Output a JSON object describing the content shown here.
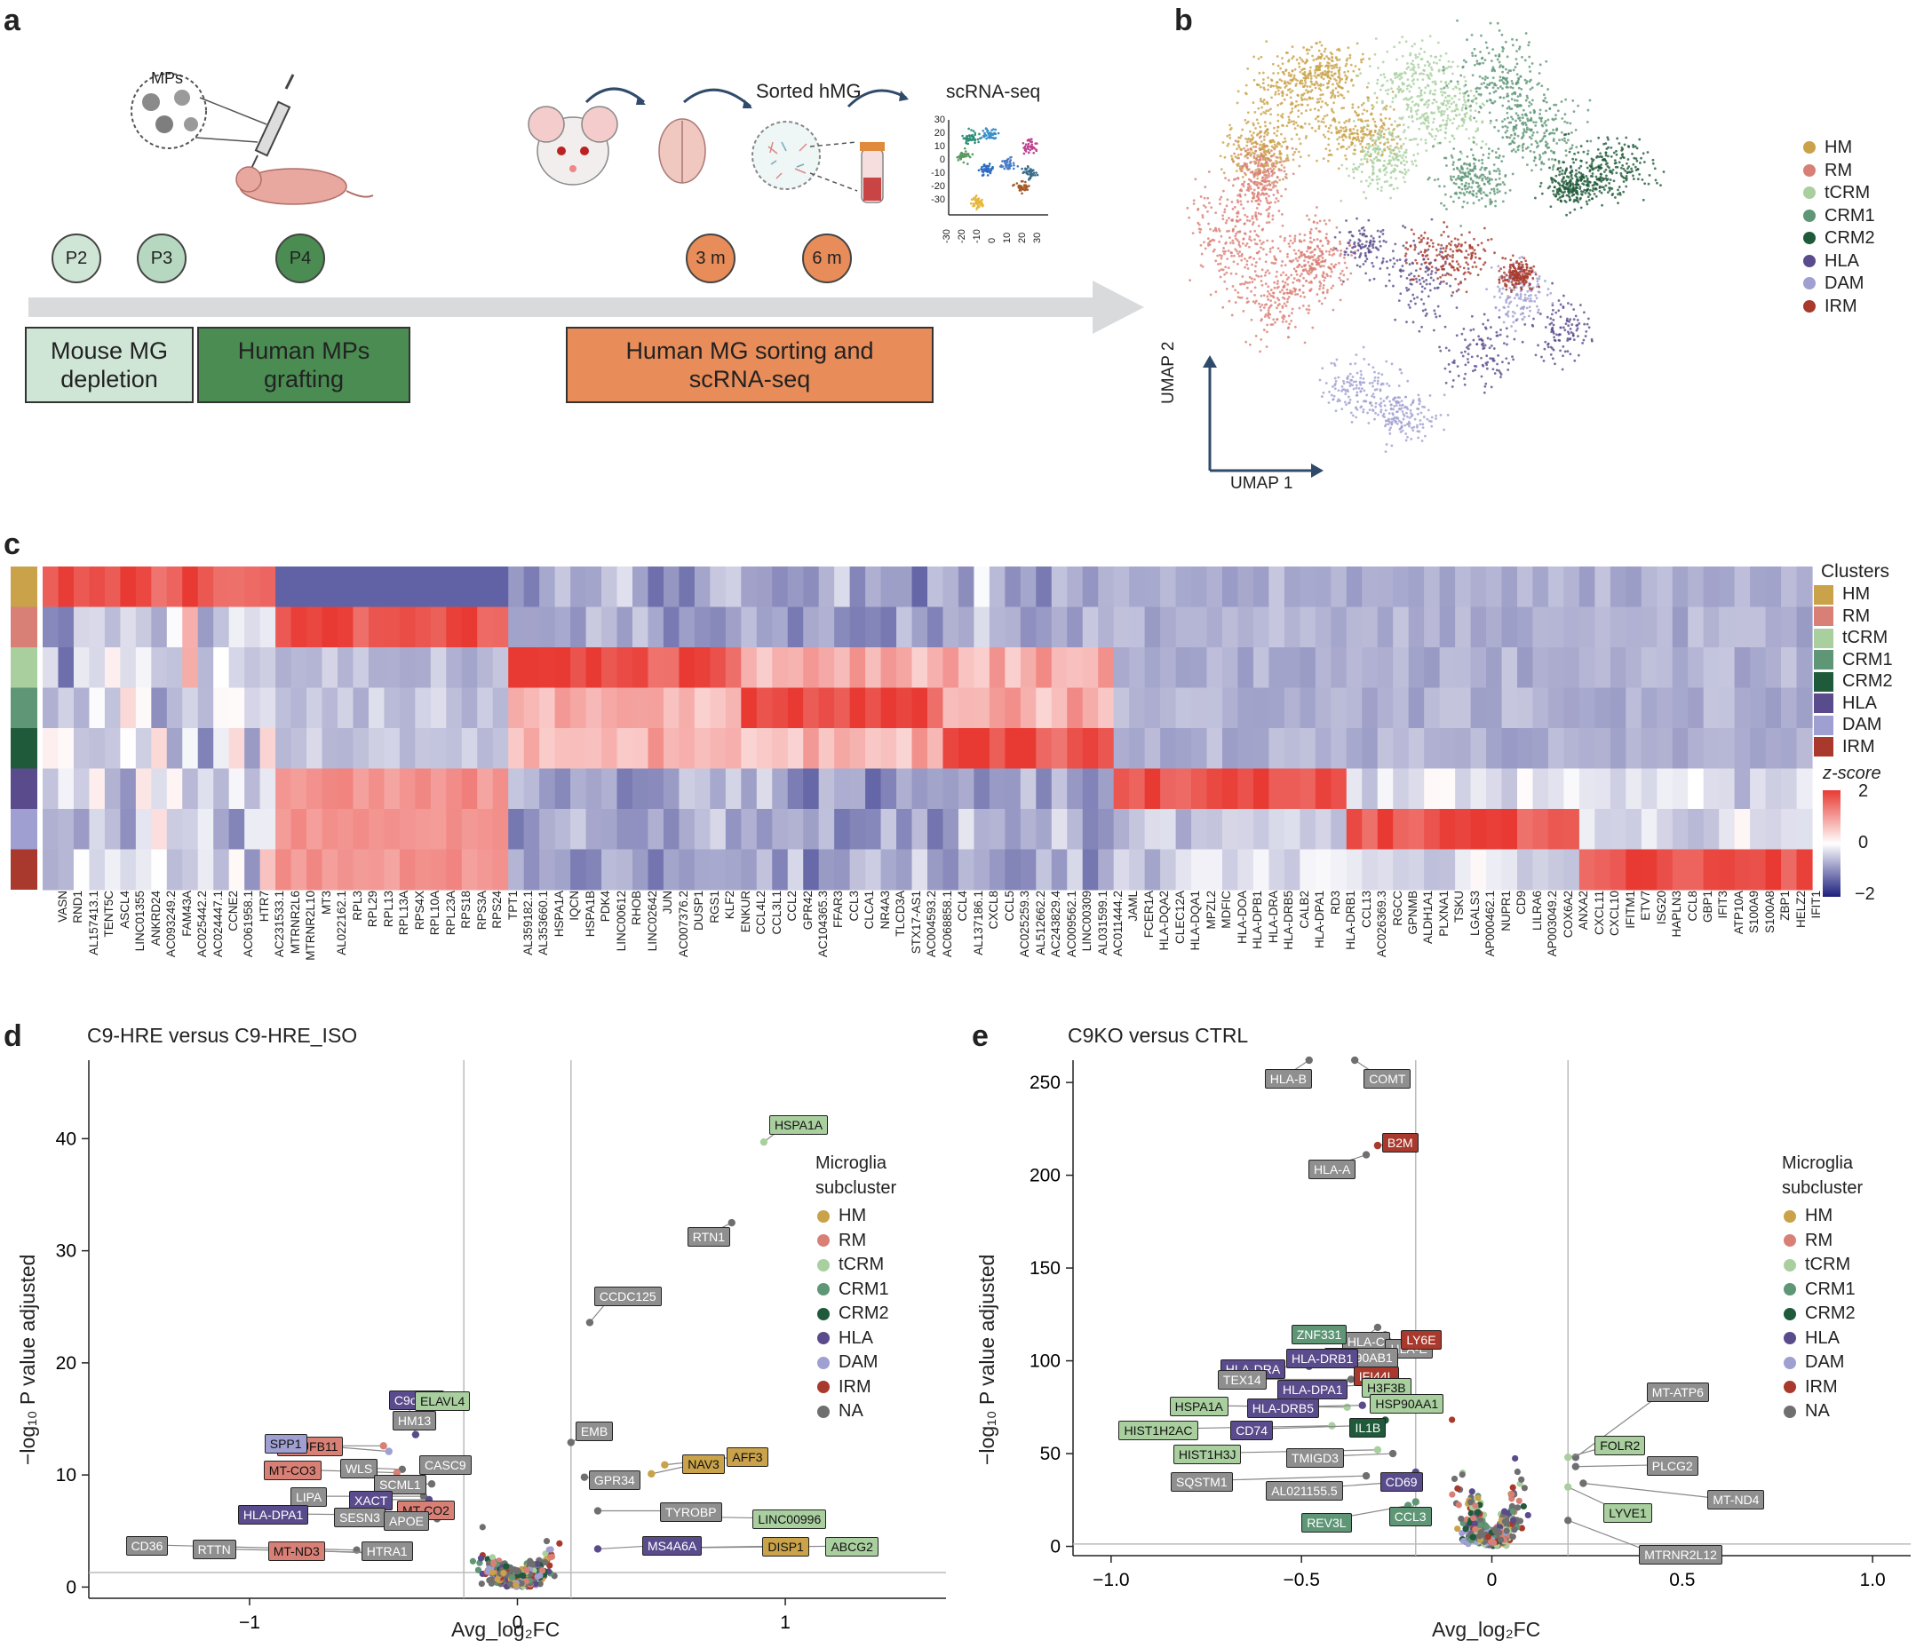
{
  "panels": {
    "a": "a",
    "b": "b",
    "c": "c",
    "d": "d",
    "e": "e"
  },
  "colors": {
    "HM": "#c9a24a",
    "RM": "#d98076",
    "tCRM": "#a9cf9f",
    "CRM1": "#5e9676",
    "CRM2": "#1f5a3a",
    "HLA": "#5a4b8c",
    "DAM": "#9f9fd1",
    "IRM": "#a8392c",
    "NA": "#6f6f6f"
  },
  "panel_a": {
    "mps_label": "MPs",
    "timepoints": [
      "P2",
      "P3",
      "P4"
    ],
    "months": [
      "3 m",
      "6 m"
    ],
    "sorted_label": "Sorted hMG",
    "scrna_label": "scRNA-seq",
    "boxes": {
      "depletion": "Mouse MG\ndepletion",
      "grafting": "Human MPs\ngrafting",
      "sorting": "Human MG sorting and\nscRNA-seq"
    },
    "mini_ticks_y": [
      "30",
      "20",
      "10",
      "0",
      "-10",
      "-20",
      "-30"
    ],
    "mini_ticks_x": [
      "-30",
      "-20",
      "-10",
      "0",
      "10",
      "20",
      "30"
    ]
  },
  "panel_b": {
    "legend": [
      "HM",
      "RM",
      "tCRM",
      "CRM1",
      "CRM2",
      "HLA",
      "DAM",
      "IRM"
    ],
    "axis_x": "UMAP 1",
    "axis_y": "UMAP 2"
  },
  "panel_c": {
    "legend_title": "Clusters",
    "clusters": [
      "HM",
      "RM",
      "tCRM",
      "CRM1",
      "CRM2",
      "HLA",
      "DAM",
      "IRM"
    ],
    "zscore_title": "z-score",
    "zscore_ticks": [
      "2",
      "0",
      "−2"
    ],
    "genes": [
      "VASN",
      "RND1",
      "AL157413.1",
      "TENT5C",
      "ASCL4",
      "LINC01355",
      "ANKRD24",
      "AC093249.2",
      "FAM43A",
      "AC025442.2",
      "AC024447.1",
      "CCNE2",
      "AC061958.1",
      "HTR7",
      "AC231533.1",
      "MTRNR2L6",
      "MTRNR2L10",
      "MT3",
      "AL022162.1",
      "RPL3",
      "RPL29",
      "RPL13",
      "RPL13A",
      "RPS4X",
      "RPL10A",
      "RPL23A",
      "RPS18",
      "RPS3A",
      "RPS24",
      "TPT1",
      "AL359182.1",
      "AL353660.1",
      "HSPA1A",
      "IQCN",
      "HSPA1B",
      "PDK4",
      "LINC00612",
      "RHOB",
      "LINC02642",
      "JUN",
      "AC007376.2",
      "DUSP1",
      "RGS1",
      "KLF2",
      "ENKUR",
      "CCL4L2",
      "CCL3L1",
      "CCL2",
      "GPR42",
      "AC104365.3",
      "FFAR3",
      "CCL3",
      "CLCA1",
      "NR4A3",
      "TLCD3A",
      "STX17-AS1",
      "AC004593.2",
      "AC068858.1",
      "CCL4",
      "AL137186.1",
      "CXCL8",
      "CCL5",
      "AC025259.3",
      "AL512662.2",
      "AC243829.4",
      "AC009562.1",
      "LINC00309",
      "AL031599.1",
      "AC011444.2",
      "JAML",
      "FCER1A",
      "HLA-DQA2",
      "CLEC12A",
      "HLA-DQA1",
      "MPZL2",
      "MDFIC",
      "HLA-DOA",
      "HLA-DPB1",
      "HLA-DRA",
      "HLA-DRB5",
      "CALB2",
      "HLA-DPA1",
      "RD3",
      "HLA-DRB1",
      "CCL13",
      "AC026369.3",
      "RGCC",
      "GPNMB",
      "ALDH1A1",
      "PLXNA1",
      "TSKU",
      "LGALS3",
      "AP000462.1",
      "NUPR1",
      "CD9",
      "LILRA6",
      "AP003049.2",
      "COX6A2",
      "ANXA2",
      "CXCL11",
      "CXCL10",
      "IFITM1",
      "ETV7",
      "ISG20",
      "HAPLN3",
      "CCL8",
      "GBP1",
      "IFIT3",
      "ATP10A",
      "S100A9",
      "S100A8",
      "ZBP1",
      "HELZ2",
      "IFIT1"
    ]
  },
  "panel_d": {
    "title": "C9-HRE versus C9-HRE_ISO",
    "xlabel": "Avg_log₂FC",
    "ylabel": "−log₁₀ P value adjusted",
    "xticks": [
      "−1",
      "0",
      "1"
    ],
    "yticks": [
      "0",
      "10",
      "20",
      "30",
      "40"
    ],
    "legend_title": "Microglia\nsubcluster",
    "legend": [
      "HM",
      "RM",
      "tCRM",
      "CRM1",
      "CRM2",
      "HLA",
      "DAM",
      "IRM",
      "NA"
    ]
  },
  "panel_e": {
    "title": "C9KO versus CTRL",
    "xlabel": "Avg_log₂FC",
    "ylabel": "−log₁₀ P value adjusted",
    "xticks": [
      "−1.0",
      "−0.5",
      "0",
      "0.5",
      "1.0"
    ],
    "yticks": [
      "0",
      "50",
      "100",
      "150",
      "200",
      "250"
    ],
    "legend_title": "Microglia\nsubcluster",
    "legend": [
      "HM",
      "RM",
      "tCRM",
      "CRM1",
      "CRM2",
      "HLA",
      "DAM",
      "IRM",
      "NA"
    ]
  },
  "chart_data": [
    {
      "type": "scatter",
      "title": "C9-HRE versus C9-HRE_ISO",
      "xlabel": "Avg_log2FC",
      "ylabel": "-log10 P value adjusted",
      "xlim": [
        -1.6,
        1.6
      ],
      "ylim": [
        -1,
        47
      ],
      "labeled_points": [
        {
          "gene": "HSPA1A",
          "x": 0.92,
          "y": 39.7,
          "c": "tCRM"
        },
        {
          "gene": "RTN1",
          "x": 0.8,
          "y": 32.5,
          "c": "NA"
        },
        {
          "gene": "CCDC125",
          "x": 0.27,
          "y": 23.6,
          "c": "NA"
        },
        {
          "gene": "C9orf72",
          "x": -0.38,
          "y": 13.6,
          "c": "HLA"
        },
        {
          "gene": "ELAVL4",
          "x": -0.35,
          "y": 15.1,
          "c": "tCRM"
        },
        {
          "gene": "HM13",
          "x": -0.4,
          "y": 14.5,
          "c": "NA"
        },
        {
          "gene": "NDUFB11",
          "x": -0.5,
          "y": 12.6,
          "c": "RM"
        },
        {
          "gene": "SPP1",
          "x": -0.48,
          "y": 12.1,
          "c": "DAM"
        },
        {
          "gene": "WLS",
          "x": -0.43,
          "y": 10.5,
          "c": "NA"
        },
        {
          "gene": "MT-CO3",
          "x": -0.45,
          "y": 10.2,
          "c": "RM"
        },
        {
          "gene": "CASC9",
          "x": -0.3,
          "y": 10.8,
          "c": "NA"
        },
        {
          "gene": "SCML1",
          "x": -0.32,
          "y": 9.2,
          "c": "NA"
        },
        {
          "gene": "LIPA",
          "x": -0.35,
          "y": 8.1,
          "c": "NA"
        },
        {
          "gene": "XACT",
          "x": -0.33,
          "y": 7.8,
          "c": "HLA"
        },
        {
          "gene": "MT-CO2",
          "x": -0.3,
          "y": 6.9,
          "c": "RM"
        },
        {
          "gene": "HLA-DPA1",
          "x": -0.38,
          "y": 6.4,
          "c": "HLA"
        },
        {
          "gene": "SESN3",
          "x": -0.32,
          "y": 6.3,
          "c": "NA"
        },
        {
          "gene": "APOE",
          "x": -0.3,
          "y": 6.1,
          "c": "NA"
        },
        {
          "gene": "CD36",
          "x": -0.6,
          "y": 3.3,
          "c": "NA"
        },
        {
          "gene": "RTTN",
          "x": -0.55,
          "y": 3.1,
          "c": "NA"
        },
        {
          "gene": "MT-ND3",
          "x": -0.5,
          "y": 3.0,
          "c": "RM"
        },
        {
          "gene": "HTRA1",
          "x": -0.45,
          "y": 3.0,
          "c": "NA"
        },
        {
          "gene": "EMB",
          "x": 0.2,
          "y": 12.9,
          "c": "NA"
        },
        {
          "gene": "NAV3",
          "x": 0.5,
          "y": 10.1,
          "c": "HM"
        },
        {
          "gene": "AFF3",
          "x": 0.55,
          "y": 10.9,
          "c": "HM"
        },
        {
          "gene": "GPR34",
          "x": 0.25,
          "y": 9.8,
          "c": "NA"
        },
        {
          "gene": "TYROBP",
          "x": 0.3,
          "y": 6.8,
          "c": "NA"
        },
        {
          "gene": "LINC00996",
          "x": 0.58,
          "y": 6.3,
          "c": "tCRM"
        },
        {
          "gene": "MS4A6A",
          "x": 0.3,
          "y": 3.4,
          "c": "HLA"
        },
        {
          "gene": "DISP1",
          "x": 0.55,
          "y": 3.5,
          "c": "HM"
        },
        {
          "gene": "ABCG2",
          "x": 0.62,
          "y": 3.5,
          "c": "tCRM"
        }
      ]
    },
    {
      "type": "scatter",
      "title": "C9KO versus CTRL",
      "xlabel": "Avg_log2FC",
      "ylabel": "-log10 P value adjusted",
      "xlim": [
        -1.1,
        1.1
      ],
      "ylim": [
        -5,
        262
      ],
      "labeled_points": [
        {
          "gene": "HLA-B",
          "x": -0.48,
          "y": 262,
          "c": "NA"
        },
        {
          "gene": "COMT",
          "x": -0.36,
          "y": 262,
          "c": "NA"
        },
        {
          "gene": "B2M",
          "x": -0.3,
          "y": 216,
          "c": "IRM"
        },
        {
          "gene": "HLA-A",
          "x": -0.33,
          "y": 211,
          "c": "NA"
        },
        {
          "gene": "HLA-C",
          "x": -0.3,
          "y": 118,
          "c": "NA"
        },
        {
          "gene": "HLA-E",
          "x": -0.28,
          "y": 114,
          "c": "NA"
        },
        {
          "gene": "ZNF331",
          "x": -0.34,
          "y": 108,
          "c": "CRM1"
        },
        {
          "gene": "HSP90AB1",
          "x": -0.3,
          "y": 107,
          "c": "NA"
        },
        {
          "gene": "HLA-DRA",
          "x": -0.48,
          "y": 97,
          "c": "HLA"
        },
        {
          "gene": "LY6E",
          "x": -0.25,
          "y": 107,
          "c": "IRM"
        },
        {
          "gene": "HLA-DRB1",
          "x": -0.33,
          "y": 100,
          "c": "HLA"
        },
        {
          "gene": "IFI44L",
          "x": -0.27,
          "y": 97,
          "c": "IRM"
        },
        {
          "gene": "TEX14",
          "x": -0.37,
          "y": 90,
          "c": "NA"
        },
        {
          "gene": "HLA-DPA1",
          "x": -0.33,
          "y": 87,
          "c": "HLA"
        },
        {
          "gene": "H3F3B",
          "x": -0.26,
          "y": 85,
          "c": "tCRM"
        },
        {
          "gene": "HSPA1A",
          "x": -0.38,
          "y": 75,
          "c": "tCRM"
        },
        {
          "gene": "HLA-DRB5",
          "x": -0.34,
          "y": 76,
          "c": "HLA"
        },
        {
          "gene": "HSP90AA1",
          "x": -0.25,
          "y": 80,
          "c": "tCRM"
        },
        {
          "gene": "HIST1H2AC",
          "x": -0.42,
          "y": 65,
          "c": "tCRM"
        },
        {
          "gene": "CD74",
          "x": -0.36,
          "y": 65,
          "c": "HLA"
        },
        {
          "gene": "IL1B",
          "x": -0.28,
          "y": 68,
          "c": "CRM2"
        },
        {
          "gene": "HIST1H3J",
          "x": -0.3,
          "y": 52,
          "c": "tCRM"
        },
        {
          "gene": "TMIGD3",
          "x": -0.26,
          "y": 50,
          "c": "NA"
        },
        {
          "gene": "SQSTM1",
          "x": -0.33,
          "y": 38,
          "c": "NA"
        },
        {
          "gene": "AL021155.5",
          "x": -0.22,
          "y": 35,
          "c": "NA"
        },
        {
          "gene": "CD69",
          "x": -0.2,
          "y": 40,
          "c": "HLA"
        },
        {
          "gene": "REV3L",
          "x": -0.22,
          "y": 22,
          "c": "CRM1"
        },
        {
          "gene": "CCL3",
          "x": -0.2,
          "y": 24,
          "c": "CRM1"
        },
        {
          "gene": "MT-ATP6",
          "x": 0.22,
          "y": 48,
          "c": "NA"
        },
        {
          "gene": "FOLR2",
          "x": 0.2,
          "y": 48,
          "c": "tCRM"
        },
        {
          "gene": "PLCG2",
          "x": 0.22,
          "y": 43,
          "c": "NA"
        },
        {
          "gene": "LYVE1",
          "x": 0.2,
          "y": 32,
          "c": "tCRM"
        },
        {
          "gene": "MT-ND4",
          "x": 0.24,
          "y": 34,
          "c": "NA"
        },
        {
          "gene": "MTRNR2L12",
          "x": 0.2,
          "y": 14,
          "c": "NA"
        }
      ]
    }
  ]
}
